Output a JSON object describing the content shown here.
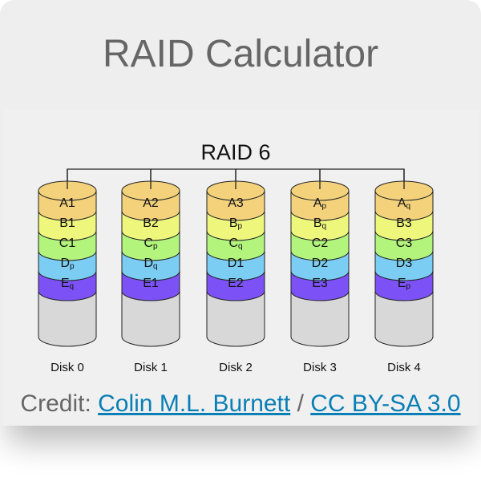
{
  "title": "RAID Calculator",
  "diagram": {
    "heading": "RAID 6",
    "colors": {
      "A": "#f4d27c",
      "B": "#eef77c",
      "C": "#b2f47c",
      "D": "#7ccdf4",
      "E": "#7c52f7",
      "empty": "#d8d8d8",
      "outline": "#222222"
    },
    "disks": [
      {
        "label": "Disk 0",
        "blocks": [
          {
            "t": "A1",
            "s": ""
          },
          {
            "t": "B1",
            "s": ""
          },
          {
            "t": "C1",
            "s": ""
          },
          {
            "t": "D",
            "s": "p"
          },
          {
            "t": "E",
            "s": "q"
          }
        ]
      },
      {
        "label": "Disk 1",
        "blocks": [
          {
            "t": "A2",
            "s": ""
          },
          {
            "t": "B2",
            "s": ""
          },
          {
            "t": "C",
            "s": "p"
          },
          {
            "t": "D",
            "s": "q"
          },
          {
            "t": "E1",
            "s": ""
          }
        ]
      },
      {
        "label": "Disk 2",
        "blocks": [
          {
            "t": "A3",
            "s": ""
          },
          {
            "t": "B",
            "s": "p"
          },
          {
            "t": "C",
            "s": "q"
          },
          {
            "t": "D1",
            "s": ""
          },
          {
            "t": "E2",
            "s": ""
          }
        ]
      },
      {
        "label": "Disk 3",
        "blocks": [
          {
            "t": "A",
            "s": "p"
          },
          {
            "t": "B",
            "s": "q"
          },
          {
            "t": "C2",
            "s": ""
          },
          {
            "t": "D2",
            "s": ""
          },
          {
            "t": "E3",
            "s": ""
          }
        ]
      },
      {
        "label": "Disk 4",
        "blocks": [
          {
            "t": "A",
            "s": "q"
          },
          {
            "t": "B3",
            "s": ""
          },
          {
            "t": "C3",
            "s": ""
          },
          {
            "t": "D3",
            "s": ""
          },
          {
            "t": "E",
            "s": "p"
          }
        ]
      }
    ]
  },
  "credit": {
    "prefix": "Credit: ",
    "author": "Colin M.L. Burnett",
    "separator": " / ",
    "license": "CC BY-SA 3.0"
  }
}
